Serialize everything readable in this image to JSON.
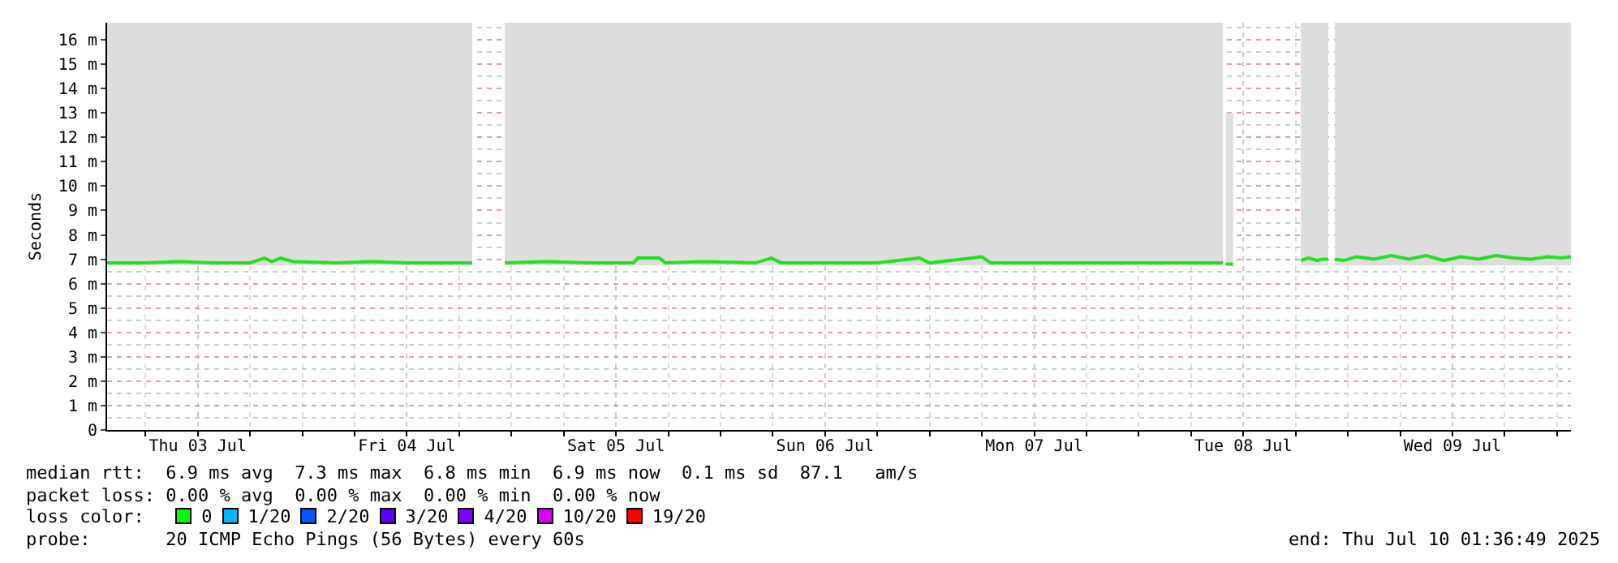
{
  "chart_data": {
    "type": "line",
    "ylabel": "Seconds",
    "xlim": [
      "2025-07-03T01:36",
      "2025-07-10T01:36"
    ],
    "xticks": [
      {
        "value": "2025-07-03T12:00",
        "label": "Thu 03 Jul"
      },
      {
        "value": "2025-07-04T12:00",
        "label": "Fri 04 Jul"
      },
      {
        "value": "2025-07-05T12:00",
        "label": "Sat 05 Jul"
      },
      {
        "value": "2025-07-06T12:00",
        "label": "Sun 06 Jul"
      },
      {
        "value": "2025-07-07T12:00",
        "label": "Mon 07 Jul"
      },
      {
        "value": "2025-07-08T12:00",
        "label": "Tue 08 Jul"
      },
      {
        "value": "2025-07-09T12:00",
        "label": "Wed 09 Jul"
      }
    ],
    "ylim": [
      0,
      16.7
    ],
    "yticks": [
      0,
      {
        "value": 1,
        "label": "1 m"
      },
      {
        "value": 2,
        "label": "2 m"
      },
      {
        "value": 3,
        "label": "3 m"
      },
      {
        "value": 4,
        "label": "4 m"
      },
      {
        "value": 5,
        "label": "5 m"
      },
      {
        "value": 6,
        "label": "6 m"
      },
      {
        "value": 7,
        "label": "7 m"
      },
      {
        "value": 8,
        "label": "8 m"
      },
      {
        "value": 9,
        "label": "9 m"
      },
      {
        "value": 10,
        "label": "10 m"
      },
      {
        "value": 11,
        "label": "11 m"
      },
      {
        "value": 12,
        "label": "12 m"
      },
      {
        "value": 13,
        "label": "13 m"
      },
      {
        "value": 14,
        "label": "14 m"
      },
      {
        "value": 15,
        "label": "15 m"
      },
      {
        "value": 16,
        "label": "16 m"
      }
    ],
    "grid": true,
    "marker": "none",
    "line_style": "solid",
    "series": [
      {
        "color": "#20e020",
        "x": [
          "2025-07-03T01:36",
          "2025-07-03T06:00",
          "2025-07-03T10:00",
          "2025-07-03T14:00",
          "2025-07-03T18:00",
          "2025-07-03T19:40",
          "2025-07-03T20:30",
          "2025-07-03T21:30",
          "2025-07-03T23:00",
          "2025-07-04T04:00",
          "2025-07-04T08:00",
          "2025-07-04T12:00",
          "2025-07-04T16:00",
          "2025-07-04T19:30",
          "2025-07-04T21:00",
          "2025-07-04T23:15",
          "2025-07-05T04:00",
          "2025-07-05T09:00",
          "2025-07-05T14:00",
          "2025-07-05T14:30",
          "2025-07-05T17:00",
          "2025-07-05T17:40",
          "2025-07-05T22:00",
          "2025-07-06T04:00",
          "2025-07-06T05:50",
          "2025-07-06T07:00",
          "2025-07-06T12:00",
          "2025-07-06T18:00",
          "2025-07-06T22:50",
          "2025-07-07T00:00",
          "2025-07-07T06:00",
          "2025-07-07T07:00",
          "2025-07-07T12:00",
          "2025-07-07T18:00",
          "2025-07-08T00:00",
          "2025-07-08T06:00",
          "2025-07-08T09:40",
          "2025-07-08T09:52",
          "2025-07-08T10:00",
          "2025-07-08T10:50",
          "2025-07-08T11:00",
          "2025-07-08T18:36",
          "2025-07-08T19:00",
          "2025-07-08T19:30",
          "2025-07-08T20:00",
          "2025-07-08T20:30",
          "2025-07-08T21:00",
          "2025-07-08T21:45",
          "2025-07-08T22:00",
          "2025-07-08T22:30",
          "2025-07-08T23:30",
          "2025-07-09T01:00",
          "2025-07-09T03:00",
          "2025-07-09T05:00",
          "2025-07-09T07:00",
          "2025-07-09T09:00",
          "2025-07-09T11:00",
          "2025-07-09T13:00",
          "2025-07-09T15:00",
          "2025-07-09T17:00",
          "2025-07-09T19:00",
          "2025-07-09T21:00",
          "2025-07-09T23:00",
          "2025-07-10T00:30",
          "2025-07-10T01:36"
        ],
        "values": [
          6.85,
          6.85,
          6.9,
          6.85,
          6.85,
          7.05,
          6.9,
          7.05,
          6.9,
          6.85,
          6.9,
          6.85,
          6.85,
          6.85,
          null,
          6.85,
          6.9,
          6.85,
          6.85,
          7.05,
          7.05,
          6.85,
          6.9,
          6.85,
          7.05,
          6.85,
          6.85,
          6.85,
          7.05,
          6.85,
          7.1,
          6.85,
          6.85,
          6.85,
          6.85,
          6.85,
          6.85,
          null,
          6.8,
          6.8,
          null,
          6.95,
          7.0,
          7.05,
          7.0,
          6.95,
          7.0,
          7.0,
          null,
          7.0,
          6.95,
          7.1,
          7.0,
          7.15,
          7.0,
          7.15,
          6.95,
          7.1,
          7.0,
          7.15,
          7.05,
          7.0,
          7.1,
          7.05,
          7.1
        ],
        "lower": [
          6.75,
          6.75,
          6.75,
          6.75,
          6.75,
          6.75,
          6.75,
          6.75,
          6.75,
          6.75,
          6.75,
          6.75,
          6.75,
          6.75,
          null,
          6.75,
          6.75,
          6.75,
          6.75,
          6.75,
          6.75,
          6.75,
          6.75,
          6.75,
          6.75,
          6.75,
          6.75,
          6.75,
          6.75,
          6.75,
          6.75,
          6.75,
          6.75,
          6.75,
          6.75,
          6.75,
          6.75,
          null,
          6.75,
          6.75,
          null,
          6.75,
          6.75,
          6.75,
          6.75,
          6.75,
          6.75,
          6.75,
          null,
          6.75,
          6.75,
          6.75,
          6.75,
          6.75,
          6.75,
          6.75,
          6.75,
          6.75,
          6.75,
          6.75,
          6.75,
          6.75,
          6.75,
          6.75,
          6.75
        ],
        "upper": [
          16.7,
          16.7,
          16.7,
          16.7,
          16.7,
          16.7,
          16.7,
          16.7,
          16.7,
          16.7,
          16.7,
          16.7,
          16.7,
          16.7,
          null,
          16.7,
          16.7,
          16.7,
          16.7,
          16.7,
          16.7,
          16.7,
          16.7,
          16.7,
          16.7,
          16.7,
          16.7,
          16.7,
          16.7,
          16.7,
          16.7,
          16.7,
          16.7,
          16.7,
          16.7,
          16.7,
          16.7,
          null,
          13,
          13,
          null,
          16.7,
          16.7,
          16.7,
          16.7,
          16.7,
          16.7,
          16.7,
          null,
          16.7,
          16.7,
          16.7,
          16.7,
          16.7,
          16.7,
          16.7,
          16.7,
          16.7,
          16.7,
          16.7,
          16.7,
          16.7,
          16.7,
          16.7,
          16.7
        ]
      }
    ],
    "annotations": [
      "median rtt:  6.9 ms avg  7.3 ms max  6.8 ms min  6.9 ms now  0.1 ms sd  87.1   am/s",
      "packet loss: 0.00 % avg  0.00 % max  0.00 % min  0.00 % now",
      "loss color:",
      "0",
      "1/20",
      "2/20",
      "3/20",
      "4/20",
      "10/20",
      "19/20",
      "probe:       20 ICMP Echo Pings (56 Bytes) every 60s",
      "end: Thu Jul 10 01:36:49 2025"
    ]
  }
}
